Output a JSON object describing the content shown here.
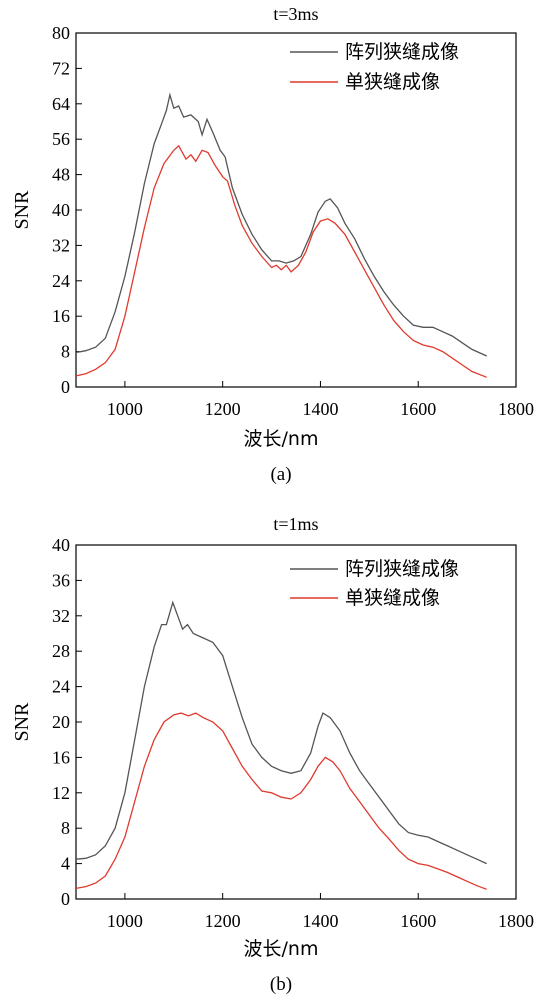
{
  "chart_data": [
    {
      "type": "line",
      "title": "t=3ms",
      "xlabel": "波长/nm",
      "ylabel": "SNR",
      "caption": "(a)",
      "xlim": [
        900,
        1800
      ],
      "ylim": [
        0,
        80
      ],
      "xticks": [
        1000,
        1200,
        1400,
        1600,
        1800
      ],
      "yticks": [
        0,
        8,
        16,
        24,
        32,
        40,
        48,
        56,
        64,
        72,
        80
      ],
      "grid": false,
      "legend_position": "top-right",
      "series": [
        {
          "name": "阵列狭缝成像",
          "color": "#555555",
          "points": [
            [
              900,
              7.8
            ],
            [
              920,
              8.2
            ],
            [
              940,
              9.0
            ],
            [
              960,
              11.0
            ],
            [
              980,
              17.0
            ],
            [
              1000,
              25.0
            ],
            [
              1020,
              35.0
            ],
            [
              1040,
              46.0
            ],
            [
              1060,
              55.0
            ],
            [
              1075,
              59.5
            ],
            [
              1085,
              62.5
            ],
            [
              1092,
              66.0
            ],
            [
              1100,
              63.0
            ],
            [
              1110,
              63.5
            ],
            [
              1120,
              61.0
            ],
            [
              1135,
              61.5
            ],
            [
              1150,
              60.0
            ],
            [
              1158,
              57.0
            ],
            [
              1168,
              60.5
            ],
            [
              1180,
              57.5
            ],
            [
              1195,
              53.5
            ],
            [
              1205,
              52.0
            ],
            [
              1220,
              45.0
            ],
            [
              1240,
              39.0
            ],
            [
              1260,
              34.5
            ],
            [
              1280,
              31.0
            ],
            [
              1300,
              28.5
            ],
            [
              1315,
              28.5
            ],
            [
              1330,
              28.0
            ],
            [
              1345,
              28.5
            ],
            [
              1360,
              29.5
            ],
            [
              1380,
              34.5
            ],
            [
              1395,
              39.5
            ],
            [
              1410,
              42.0
            ],
            [
              1420,
              42.5
            ],
            [
              1435,
              40.5
            ],
            [
              1450,
              37.0
            ],
            [
              1470,
              33.5
            ],
            [
              1490,
              29.0
            ],
            [
              1510,
              25.0
            ],
            [
              1530,
              21.5
            ],
            [
              1550,
              18.5
            ],
            [
              1570,
              16.0
            ],
            [
              1590,
              14.0
            ],
            [
              1610,
              13.5
            ],
            [
              1630,
              13.5
            ],
            [
              1650,
              12.5
            ],
            [
              1670,
              11.5
            ],
            [
              1690,
              10.0
            ],
            [
              1710,
              8.5
            ],
            [
              1740,
              7.0
            ]
          ]
        },
        {
          "name": "单狭缝成像",
          "color": "#e03a2e",
          "points": [
            [
              900,
              2.5
            ],
            [
              920,
              3.0
            ],
            [
              940,
              4.0
            ],
            [
              960,
              5.5
            ],
            [
              980,
              8.5
            ],
            [
              1000,
              16.0
            ],
            [
              1020,
              26.0
            ],
            [
              1040,
              36.0
            ],
            [
              1060,
              45.0
            ],
            [
              1080,
              50.5
            ],
            [
              1100,
              53.5
            ],
            [
              1110,
              54.5
            ],
            [
              1125,
              51.5
            ],
            [
              1135,
              52.5
            ],
            [
              1145,
              51.0
            ],
            [
              1158,
              53.5
            ],
            [
              1170,
              53.0
            ],
            [
              1185,
              50.0
            ],
            [
              1200,
              47.5
            ],
            [
              1210,
              46.5
            ],
            [
              1225,
              41.0
            ],
            [
              1240,
              36.5
            ],
            [
              1260,
              32.5
            ],
            [
              1280,
              29.5
            ],
            [
              1300,
              27.0
            ],
            [
              1310,
              27.5
            ],
            [
              1320,
              26.5
            ],
            [
              1330,
              27.5
            ],
            [
              1340,
              26.0
            ],
            [
              1355,
              27.5
            ],
            [
              1370,
              30.5
            ],
            [
              1385,
              35.0
            ],
            [
              1400,
              37.5
            ],
            [
              1415,
              38.0
            ],
            [
              1430,
              37.0
            ],
            [
              1450,
              34.5
            ],
            [
              1470,
              30.5
            ],
            [
              1490,
              26.5
            ],
            [
              1510,
              22.5
            ],
            [
              1530,
              18.5
            ],
            [
              1550,
              15.0
            ],
            [
              1570,
              12.5
            ],
            [
              1590,
              10.5
            ],
            [
              1610,
              9.5
            ],
            [
              1630,
              9.0
            ],
            [
              1650,
              8.0
            ],
            [
              1670,
              6.5
            ],
            [
              1690,
              5.0
            ],
            [
              1710,
              3.5
            ],
            [
              1740,
              2.2
            ]
          ]
        }
      ]
    },
    {
      "type": "line",
      "title": "t=1ms",
      "xlabel": "波长/nm",
      "ylabel": "SNR",
      "caption": "(b)",
      "xlim": [
        900,
        1800
      ],
      "ylim": [
        0,
        40
      ],
      "xticks": [
        1000,
        1200,
        1400,
        1600,
        1800
      ],
      "yticks": [
        0,
        4,
        8,
        12,
        16,
        20,
        24,
        28,
        32,
        36,
        40
      ],
      "grid": false,
      "legend_position": "top-right",
      "series": [
        {
          "name": "阵列狭缝成像",
          "color": "#555555",
          "points": [
            [
              900,
              4.5
            ],
            [
              920,
              4.6
            ],
            [
              940,
              5.0
            ],
            [
              960,
              6.0
            ],
            [
              980,
              8.0
            ],
            [
              1000,
              12.0
            ],
            [
              1020,
              18.0
            ],
            [
              1040,
              24.0
            ],
            [
              1060,
              28.5
            ],
            [
              1075,
              31.0
            ],
            [
              1085,
              31.0
            ],
            [
              1098,
              33.5
            ],
            [
              1108,
              32.0
            ],
            [
              1118,
              30.5
            ],
            [
              1128,
              31.0
            ],
            [
              1140,
              30.0
            ],
            [
              1160,
              29.5
            ],
            [
              1180,
              29.0
            ],
            [
              1200,
              27.5
            ],
            [
              1220,
              24.0
            ],
            [
              1240,
              20.5
            ],
            [
              1260,
              17.5
            ],
            [
              1280,
              16.0
            ],
            [
              1300,
              15.0
            ],
            [
              1320,
              14.5
            ],
            [
              1340,
              14.2
            ],
            [
              1360,
              14.5
            ],
            [
              1380,
              16.5
            ],
            [
              1395,
              19.5
            ],
            [
              1405,
              21.0
            ],
            [
              1420,
              20.5
            ],
            [
              1440,
              19.0
            ],
            [
              1460,
              16.5
            ],
            [
              1480,
              14.5
            ],
            [
              1500,
              13.0
            ],
            [
              1520,
              11.5
            ],
            [
              1540,
              10.0
            ],
            [
              1560,
              8.5
            ],
            [
              1580,
              7.5
            ],
            [
              1600,
              7.2
            ],
            [
              1620,
              7.0
            ],
            [
              1640,
              6.5
            ],
            [
              1660,
              6.0
            ],
            [
              1680,
              5.5
            ],
            [
              1700,
              5.0
            ],
            [
              1720,
              4.5
            ],
            [
              1740,
              4.0
            ]
          ]
        },
        {
          "name": "单狭缝成像",
          "color": "#e03a2e",
          "points": [
            [
              900,
              1.2
            ],
            [
              920,
              1.4
            ],
            [
              940,
              1.8
            ],
            [
              960,
              2.6
            ],
            [
              980,
              4.5
            ],
            [
              1000,
              7.0
            ],
            [
              1020,
              11.0
            ],
            [
              1040,
              15.0
            ],
            [
              1060,
              18.0
            ],
            [
              1080,
              20.0
            ],
            [
              1100,
              20.8
            ],
            [
              1115,
              21.0
            ],
            [
              1130,
              20.7
            ],
            [
              1145,
              21.0
            ],
            [
              1160,
              20.5
            ],
            [
              1180,
              20.0
            ],
            [
              1200,
              19.0
            ],
            [
              1220,
              17.0
            ],
            [
              1240,
              15.0
            ],
            [
              1260,
              13.5
            ],
            [
              1280,
              12.2
            ],
            [
              1300,
              12.0
            ],
            [
              1320,
              11.5
            ],
            [
              1340,
              11.3
            ],
            [
              1360,
              12.0
            ],
            [
              1380,
              13.5
            ],
            [
              1395,
              15.0
            ],
            [
              1410,
              16.0
            ],
            [
              1425,
              15.5
            ],
            [
              1440,
              14.5
            ],
            [
              1460,
              12.5
            ],
            [
              1480,
              11.0
            ],
            [
              1500,
              9.5
            ],
            [
              1520,
              8.0
            ],
            [
              1540,
              6.8
            ],
            [
              1560,
              5.5
            ],
            [
              1580,
              4.5
            ],
            [
              1600,
              4.0
            ],
            [
              1620,
              3.8
            ],
            [
              1640,
              3.4
            ],
            [
              1660,
              3.0
            ],
            [
              1680,
              2.5
            ],
            [
              1700,
              2.0
            ],
            [
              1720,
              1.5
            ],
            [
              1740,
              1.1
            ]
          ]
        }
      ]
    }
  ]
}
